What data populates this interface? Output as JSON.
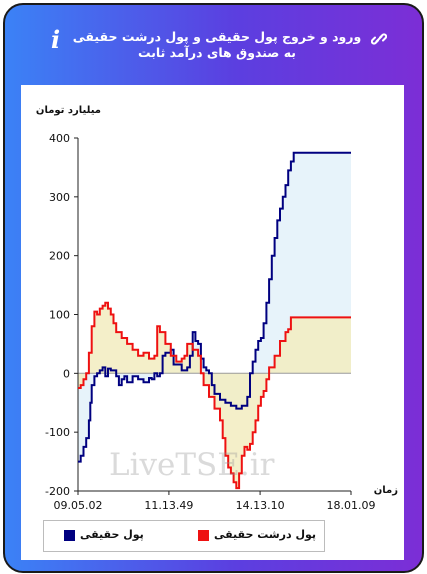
{
  "header": {
    "title": "ورود و خروج پول حقیقی و پول درشت حقیقی به صندوق های درآمد ثابت",
    "info_icon": "info-icon",
    "link_icon": "link-icon"
  },
  "watermark": "LiveTSE.ir",
  "colors": {
    "series1": "#000080",
    "series2": "#ee1111",
    "fill1": "#e6f2fa",
    "fill2": "#f2ecc0"
  },
  "chart_data": {
    "type": "area",
    "ylabel": "میلیارد تومان",
    "xlabel": "زمان",
    "ylim": [
      -200,
      400
    ],
    "yticks": [
      "400",
      "300",
      "200",
      "100",
      "0",
      "-100",
      "-200"
    ],
    "ytick_values": [
      400,
      300,
      200,
      100,
      0,
      -100,
      -200
    ],
    "xlim": [
      0,
      1
    ],
    "xticks": [
      "09.05.02",
      "11.13.49",
      "14.13.10",
      "18.01.09"
    ],
    "xtick_positions": [
      0,
      0.333,
      0.667,
      1
    ],
    "series": [
      {
        "name": "پول حقیقی",
        "color": "#000080",
        "fill": "#e6f2fa",
        "points": [
          [
            0,
            -150
          ],
          [
            0.01,
            -140
          ],
          [
            0.02,
            -125
          ],
          [
            0.03,
            -110
          ],
          [
            0.04,
            -80
          ],
          [
            0.045,
            -50
          ],
          [
            0.05,
            -20
          ],
          [
            0.06,
            -5
          ],
          [
            0.07,
            0
          ],
          [
            0.08,
            5
          ],
          [
            0.09,
            10
          ],
          [
            0.1,
            -5
          ],
          [
            0.11,
            8
          ],
          [
            0.12,
            5
          ],
          [
            0.14,
            -5
          ],
          [
            0.15,
            -20
          ],
          [
            0.16,
            -10
          ],
          [
            0.17,
            -5
          ],
          [
            0.18,
            -15
          ],
          [
            0.2,
            -5
          ],
          [
            0.22,
            -10
          ],
          [
            0.24,
            -15
          ],
          [
            0.26,
            -8
          ],
          [
            0.27,
            -10
          ],
          [
            0.28,
            0
          ],
          [
            0.29,
            -5
          ],
          [
            0.3,
            0
          ],
          [
            0.31,
            30
          ],
          [
            0.32,
            35
          ],
          [
            0.34,
            40
          ],
          [
            0.35,
            15
          ],
          [
            0.38,
            5
          ],
          [
            0.4,
            10
          ],
          [
            0.41,
            30
          ],
          [
            0.42,
            70
          ],
          [
            0.43,
            55
          ],
          [
            0.44,
            50
          ],
          [
            0.45,
            25
          ],
          [
            0.46,
            10
          ],
          [
            0.47,
            5
          ],
          [
            0.48,
            0
          ],
          [
            0.49,
            -20
          ],
          [
            0.5,
            -35
          ],
          [
            0.52,
            -45
          ],
          [
            0.54,
            -50
          ],
          [
            0.56,
            -55
          ],
          [
            0.58,
            -60
          ],
          [
            0.6,
            -55
          ],
          [
            0.62,
            -40
          ],
          [
            0.63,
            0
          ],
          [
            0.64,
            20
          ],
          [
            0.65,
            40
          ],
          [
            0.66,
            55
          ],
          [
            0.67,
            60
          ],
          [
            0.68,
            85
          ],
          [
            0.69,
            120
          ],
          [
            0.7,
            160
          ],
          [
            0.71,
            200
          ],
          [
            0.72,
            230
          ],
          [
            0.73,
            260
          ],
          [
            0.74,
            280
          ],
          [
            0.75,
            300
          ],
          [
            0.76,
            320
          ],
          [
            0.77,
            345
          ],
          [
            0.78,
            360
          ],
          [
            0.79,
            375
          ],
          [
            0.8,
            375
          ],
          [
            1,
            375
          ]
        ]
      },
      {
        "name": "پول درشت حقیقی",
        "color": "#ee1111",
        "fill": "#f2ecc0",
        "points": [
          [
            0,
            -25
          ],
          [
            0.01,
            -20
          ],
          [
            0.02,
            -10
          ],
          [
            0.03,
            0
          ],
          [
            0.04,
            35
          ],
          [
            0.05,
            80
          ],
          [
            0.06,
            105
          ],
          [
            0.07,
            100
          ],
          [
            0.08,
            110
          ],
          [
            0.09,
            115
          ],
          [
            0.1,
            120
          ],
          [
            0.11,
            110
          ],
          [
            0.12,
            100
          ],
          [
            0.13,
            85
          ],
          [
            0.14,
            70
          ],
          [
            0.16,
            60
          ],
          [
            0.18,
            50
          ],
          [
            0.2,
            40
          ],
          [
            0.22,
            30
          ],
          [
            0.24,
            35
          ],
          [
            0.26,
            25
          ],
          [
            0.28,
            30
          ],
          [
            0.29,
            80
          ],
          [
            0.3,
            70
          ],
          [
            0.32,
            50
          ],
          [
            0.34,
            30
          ],
          [
            0.36,
            20
          ],
          [
            0.38,
            25
          ],
          [
            0.39,
            30
          ],
          [
            0.4,
            50
          ],
          [
            0.42,
            40
          ],
          [
            0.44,
            30
          ],
          [
            0.45,
            0
          ],
          [
            0.46,
            -20
          ],
          [
            0.48,
            -40
          ],
          [
            0.5,
            -60
          ],
          [
            0.52,
            -80
          ],
          [
            0.53,
            -110
          ],
          [
            0.54,
            -140
          ],
          [
            0.55,
            -160
          ],
          [
            0.56,
            -170
          ],
          [
            0.57,
            -185
          ],
          [
            0.58,
            -195
          ],
          [
            0.59,
            -170
          ],
          [
            0.6,
            -140
          ],
          [
            0.61,
            -125
          ],
          [
            0.62,
            -130
          ],
          [
            0.63,
            -120
          ],
          [
            0.64,
            -100
          ],
          [
            0.65,
            -80
          ],
          [
            0.66,
            -55
          ],
          [
            0.67,
            -40
          ],
          [
            0.68,
            -30
          ],
          [
            0.69,
            -10
          ],
          [
            0.7,
            10
          ],
          [
            0.72,
            30
          ],
          [
            0.74,
            55
          ],
          [
            0.76,
            70
          ],
          [
            0.77,
            75
          ],
          [
            0.78,
            95
          ],
          [
            1,
            95
          ]
        ]
      }
    ],
    "legend": [
      {
        "label": "پول درشت حقیقی",
        "color": "#ee1111"
      },
      {
        "label": "پول حقیقی",
        "color": "#000080"
      }
    ],
    "legend_position": "bottom",
    "grid": false
  }
}
